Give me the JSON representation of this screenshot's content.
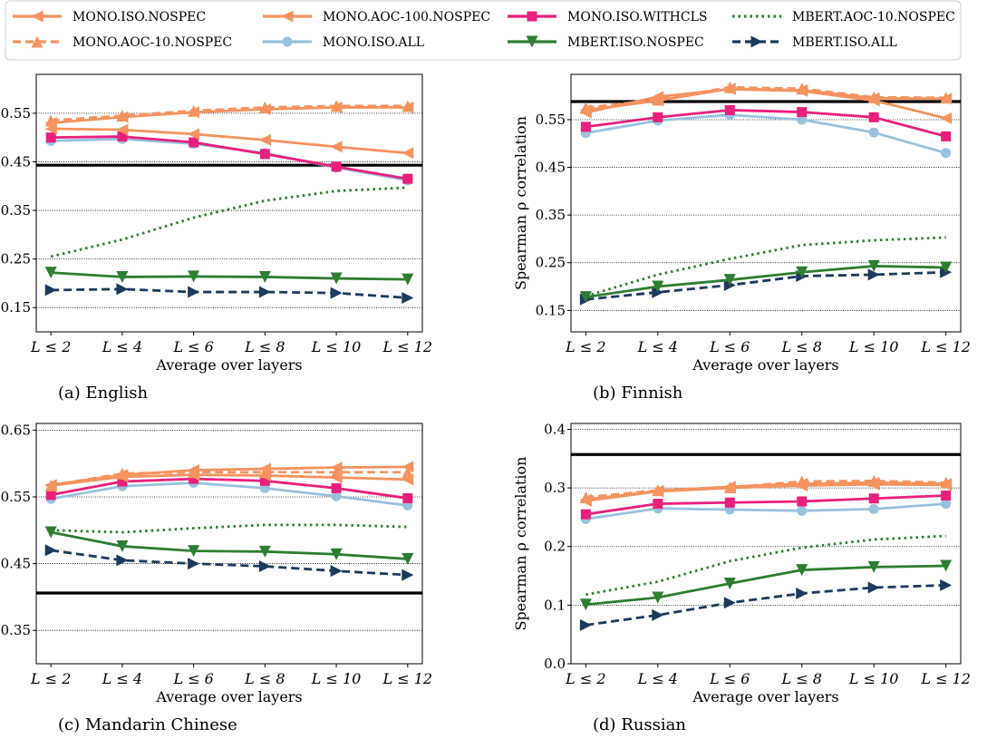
{
  "legend": {
    "entries": [
      {
        "label": "MONO.ISO.NOSPEC",
        "color": "#f4935e",
        "dash": "solid",
        "marker": "left-triangle"
      },
      {
        "label": "MONO.AOC-100.NOSPEC",
        "color": "#f4935e",
        "dash": "solid",
        "marker": "left-triangle"
      },
      {
        "label": "MONO.ISO.WITHCLS",
        "color": "#e8207c",
        "dash": "solid",
        "marker": "square"
      },
      {
        "label": "MBERT.AOC-10.NOSPEC",
        "color": "#2e7d32",
        "dash": "dotted",
        "marker": "none"
      },
      {
        "label": "MONO.AOC-10.NOSPEC",
        "color": "#f4935e",
        "dash": "dashed",
        "marker": "up-triangle"
      },
      {
        "label": "MONO.ISO.ALL",
        "color": "#99c1dd",
        "dash": "solid",
        "marker": "circle"
      },
      {
        "label": "MBERT.ISO.NOSPEC",
        "color": "#2e7d32",
        "dash": "solid",
        "marker": "down-triangle"
      },
      {
        "label": "MBERT.ISO.ALL",
        "color": "#1c3a5e",
        "dash": "dashed",
        "marker": "right-triangle"
      }
    ]
  },
  "chart_data": [
    {
      "type": "line",
      "title": "(a) English",
      "xlabel": "Average over layers",
      "ylabel": "Spearman ρ correlation",
      "categories": [
        "L ≤ 2",
        "L ≤ 4",
        "L ≤ 6",
        "L ≤ 8",
        "L ≤ 10",
        "L ≤ 12"
      ],
      "ylim": [
        0.1,
        0.63
      ],
      "yticks": [
        0.15,
        0.25,
        0.35,
        0.45,
        0.55
      ],
      "ytick_labels": [
        "0.15",
        "0.25",
        "0.35",
        "0.45",
        "0.55"
      ],
      "baseline": 0.443,
      "series": [
        {
          "name": "MONO.ISO.NOSPEC",
          "values": [
            0.518,
            0.516,
            0.507,
            0.495,
            0.481,
            0.468
          ]
        },
        {
          "name": "MONO.AOC-100.NOSPEC",
          "values": [
            0.53,
            0.542,
            0.552,
            0.558,
            0.562,
            0.562
          ]
        },
        {
          "name": "MONO.AOC-10.NOSPEC",
          "values": [
            0.535,
            0.545,
            0.555,
            0.562,
            0.565,
            0.565
          ]
        },
        {
          "name": "MONO.ISO.WITHCLS",
          "values": [
            0.5,
            0.502,
            0.49,
            0.466,
            0.44,
            0.415
          ]
        },
        {
          "name": "MONO.ISO.ALL",
          "values": [
            0.493,
            0.497,
            0.487,
            0.468,
            0.438,
            0.412
          ]
        },
        {
          "name": "MBERT.AOC-10.NOSPEC",
          "values": [
            0.255,
            0.29,
            0.335,
            0.37,
            0.39,
            0.397
          ]
        },
        {
          "name": "MBERT.ISO.NOSPEC",
          "values": [
            0.222,
            0.213,
            0.214,
            0.213,
            0.21,
            0.208
          ]
        },
        {
          "name": "MBERT.ISO.ALL",
          "values": [
            0.186,
            0.188,
            0.182,
            0.182,
            0.18,
            0.17
          ]
        }
      ]
    },
    {
      "type": "line",
      "title": "(b) Finnish",
      "xlabel": "Average over layers",
      "ylabel": "Spearman ρ correlation",
      "categories": [
        "L ≤ 2",
        "L ≤ 4",
        "L ≤ 6",
        "L ≤ 8",
        "L ≤ 10",
        "L ≤ 12"
      ],
      "ylim": [
        0.105,
        0.645
      ],
      "yticks": [
        0.15,
        0.25,
        0.35,
        0.45,
        0.55
      ],
      "ytick_labels": [
        "0.15",
        "0.25",
        "0.35",
        "0.45",
        "0.55"
      ],
      "baseline": 0.588,
      "series": [
        {
          "name": "MONO.ISO.NOSPEC",
          "values": [
            0.565,
            0.598,
            0.614,
            0.61,
            0.59,
            0.553
          ]
        },
        {
          "name": "MONO.AOC-100.NOSPEC",
          "values": [
            0.57,
            0.59,
            0.615,
            0.612,
            0.595,
            0.594
          ]
        },
        {
          "name": "MONO.AOC-10.NOSPEC",
          "values": [
            0.575,
            0.592,
            0.618,
            0.615,
            0.597,
            0.596
          ]
        },
        {
          "name": "MONO.ISO.WITHCLS",
          "values": [
            0.535,
            0.555,
            0.57,
            0.566,
            0.555,
            0.515
          ]
        },
        {
          "name": "MONO.ISO.ALL",
          "values": [
            0.522,
            0.548,
            0.56,
            0.55,
            0.523,
            0.48
          ]
        },
        {
          "name": "MBERT.AOC-10.NOSPEC",
          "values": [
            0.18,
            0.225,
            0.258,
            0.287,
            0.297,
            0.303
          ]
        },
        {
          "name": "MBERT.ISO.NOSPEC",
          "values": [
            0.178,
            0.2,
            0.214,
            0.23,
            0.243,
            0.24
          ]
        },
        {
          "name": "MBERT.ISO.ALL",
          "values": [
            0.173,
            0.188,
            0.203,
            0.222,
            0.225,
            0.23
          ]
        }
      ]
    },
    {
      "type": "line",
      "title": "(c) Mandarin Chinese",
      "xlabel": "Average over layers",
      "ylabel": "Spearman ρ correlation",
      "categories": [
        "L ≤ 2",
        "L ≤ 4",
        "L ≤ 6",
        "L ≤ 8",
        "L ≤ 10",
        "L ≤ 12"
      ],
      "ylim": [
        0.3,
        0.66
      ],
      "yticks": [
        0.35,
        0.45,
        0.55,
        0.65
      ],
      "ytick_labels": [
        "0.35",
        "0.45",
        "0.55",
        "0.65"
      ],
      "baseline": 0.406,
      "series": [
        {
          "name": "MONO.ISO.NOSPEC",
          "values": [
            0.567,
            0.58,
            0.583,
            0.582,
            0.579,
            0.576
          ]
        },
        {
          "name": "MONO.AOC-100.NOSPEC",
          "values": [
            0.568,
            0.583,
            0.59,
            0.592,
            0.594,
            0.595
          ]
        },
        {
          "name": "MONO.AOC-10.NOSPEC",
          "values": [
            0.567,
            0.585,
            0.587,
            0.587,
            0.587,
            0.587
          ]
        },
        {
          "name": "MONO.ISO.WITHCLS",
          "values": [
            0.553,
            0.573,
            0.577,
            0.574,
            0.563,
            0.548
          ]
        },
        {
          "name": "MONO.ISO.ALL",
          "values": [
            0.547,
            0.566,
            0.571,
            0.563,
            0.551,
            0.537
          ]
        },
        {
          "name": "MBERT.AOC-10.NOSPEC",
          "values": [
            0.5,
            0.497,
            0.503,
            0.508,
            0.508,
            0.505
          ]
        },
        {
          "name": "MBERT.ISO.NOSPEC",
          "values": [
            0.497,
            0.476,
            0.469,
            0.468,
            0.464,
            0.457
          ]
        },
        {
          "name": "MBERT.ISO.ALL",
          "values": [
            0.47,
            0.455,
            0.45,
            0.446,
            0.439,
            0.433
          ]
        }
      ]
    },
    {
      "type": "line",
      "title": "(d) Russian",
      "xlabel": "Average over layers",
      "ylabel": "Spearman ρ correlation",
      "categories": [
        "L ≤ 2",
        "L ≤ 4",
        "L ≤ 6",
        "L ≤ 8",
        "L ≤ 10",
        "L ≤ 12"
      ],
      "ylim": [
        0.0,
        0.41
      ],
      "yticks": [
        0.0,
        0.1,
        0.2,
        0.3,
        0.4
      ],
      "ytick_labels": [
        "0.0",
        "0.1",
        "0.2",
        "0.3",
        "0.4"
      ],
      "baseline": 0.357,
      "series": [
        {
          "name": "MONO.ISO.NOSPEC",
          "values": [
            0.278,
            0.294,
            0.3,
            0.304,
            0.306,
            0.305
          ]
        },
        {
          "name": "MONO.AOC-100.NOSPEC",
          "values": [
            0.28,
            0.295,
            0.302,
            0.307,
            0.309,
            0.307
          ]
        },
        {
          "name": "MONO.AOC-10.NOSPEC",
          "values": [
            0.284,
            0.296,
            0.301,
            0.311,
            0.312,
            0.309
          ]
        },
        {
          "name": "MONO.ISO.WITHCLS",
          "values": [
            0.255,
            0.273,
            0.275,
            0.277,
            0.282,
            0.287
          ]
        },
        {
          "name": "MONO.ISO.ALL",
          "values": [
            0.247,
            0.265,
            0.263,
            0.261,
            0.264,
            0.273
          ]
        },
        {
          "name": "MBERT.AOC-10.NOSPEC",
          "values": [
            0.118,
            0.14,
            0.175,
            0.198,
            0.212,
            0.218
          ]
        },
        {
          "name": "MBERT.ISO.NOSPEC",
          "values": [
            0.101,
            0.113,
            0.137,
            0.16,
            0.165,
            0.167
          ]
        },
        {
          "name": "MBERT.ISO.ALL",
          "values": [
            0.066,
            0.083,
            0.104,
            0.12,
            0.13,
            0.134
          ]
        }
      ]
    }
  ]
}
